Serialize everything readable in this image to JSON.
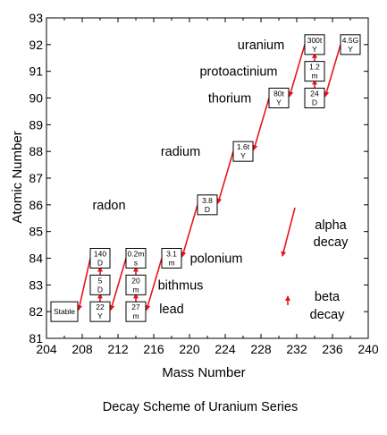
{
  "chart_data": {
    "type": "decay-scheme",
    "title": "Decay Scheme of Uranium Series",
    "xlabel": "Mass Number",
    "ylabel": "Atomic Number",
    "xlim": [
      204,
      240
    ],
    "ylim": [
      81,
      93
    ],
    "x_ticks": [
      "204",
      "208",
      "212",
      "216",
      "220",
      "224",
      "228",
      "232",
      "236",
      "240"
    ],
    "y_ticks": [
      "81",
      "82",
      "83",
      "84",
      "85",
      "86",
      "87",
      "88",
      "89",
      "90",
      "91",
      "92",
      "93"
    ],
    "elements": [
      {
        "name": "uranium",
        "mass": 228,
        "z": 92
      },
      {
        "name": "protoactinium",
        "mass": 225.5,
        "z": 91
      },
      {
        "name": "thorium",
        "mass": 224.5,
        "z": 90
      },
      {
        "name": "radium",
        "mass": 219,
        "z": 88
      },
      {
        "name": "radon",
        "mass": 211,
        "z": 86
      },
      {
        "name": "polonium",
        "mass": 223,
        "z": 84
      },
      {
        "name": "bithmus",
        "mass": 219,
        "z": 83
      },
      {
        "name": "lead",
        "mass": 218,
        "z": 82.1
      }
    ],
    "nuclides": [
      {
        "id": "U238",
        "mass": 238,
        "z": 92,
        "label": [
          "4.5G",
          "Y"
        ]
      },
      {
        "id": "Th234",
        "mass": 234,
        "z": 90,
        "label": [
          "24",
          "D"
        ]
      },
      {
        "id": "Pa234",
        "mass": 234,
        "z": 91,
        "label": [
          "1.2",
          "m"
        ]
      },
      {
        "id": "U234",
        "mass": 234,
        "z": 92,
        "label": [
          "300t",
          "Y"
        ]
      },
      {
        "id": "Th230",
        "mass": 230,
        "z": 90,
        "label": [
          "80t",
          "Y"
        ]
      },
      {
        "id": "Ra226",
        "mass": 226,
        "z": 88,
        "label": [
          "1.6t",
          "Y"
        ]
      },
      {
        "id": "Rn222",
        "mass": 222,
        "z": 86,
        "label": [
          "3.8",
          "D"
        ]
      },
      {
        "id": "Po218",
        "mass": 218,
        "z": 84,
        "label": [
          "3.1",
          "m"
        ]
      },
      {
        "id": "Pb214",
        "mass": 214,
        "z": 82,
        "label": [
          "27",
          "m"
        ]
      },
      {
        "id": "Bi214",
        "mass": 214,
        "z": 83,
        "label": [
          "20",
          "m"
        ]
      },
      {
        "id": "Po214",
        "mass": 214,
        "z": 84,
        "label": [
          "0.2m",
          "s"
        ]
      },
      {
        "id": "Pb210",
        "mass": 210,
        "z": 82,
        "label": [
          "22",
          "Y"
        ]
      },
      {
        "id": "Bi210",
        "mass": 210,
        "z": 83,
        "label": [
          "5",
          "D"
        ]
      },
      {
        "id": "Po210",
        "mass": 210,
        "z": 84,
        "label": [
          "140",
          "D"
        ]
      },
      {
        "id": "Pb206",
        "mass": 206,
        "z": 82,
        "label": [
          "Stable"
        ]
      }
    ],
    "alpha_decays": [
      {
        "from": "U238",
        "to": "Th234"
      },
      {
        "from": "U234",
        "to": "Th230"
      },
      {
        "from": "Th230",
        "to": "Ra226"
      },
      {
        "from": "Ra226",
        "to": "Rn222"
      },
      {
        "from": "Rn222",
        "to": "Po218"
      },
      {
        "from": "Po218",
        "to": "Pb214"
      },
      {
        "from": "Po214",
        "to": "Pb210"
      },
      {
        "from": "Po210",
        "to": "Pb206"
      }
    ],
    "beta_decays": [
      {
        "from": "Th234",
        "to": "Pa234"
      },
      {
        "from": "Pa234",
        "to": "U234"
      },
      {
        "from": "Pb214",
        "to": "Bi214"
      },
      {
        "from": "Bi214",
        "to": "Po214"
      },
      {
        "from": "Pb210",
        "to": "Bi210"
      },
      {
        "from": "Bi210",
        "to": "Po210"
      }
    ],
    "legend": {
      "alpha_label": [
        "alpha",
        "decay"
      ],
      "beta_label": [
        "beta",
        "decay"
      ]
    },
    "colors": {
      "arrow": "#e8141c",
      "box_border": "#000000",
      "box_fill": "#ffffff",
      "axis": "#000000"
    }
  }
}
